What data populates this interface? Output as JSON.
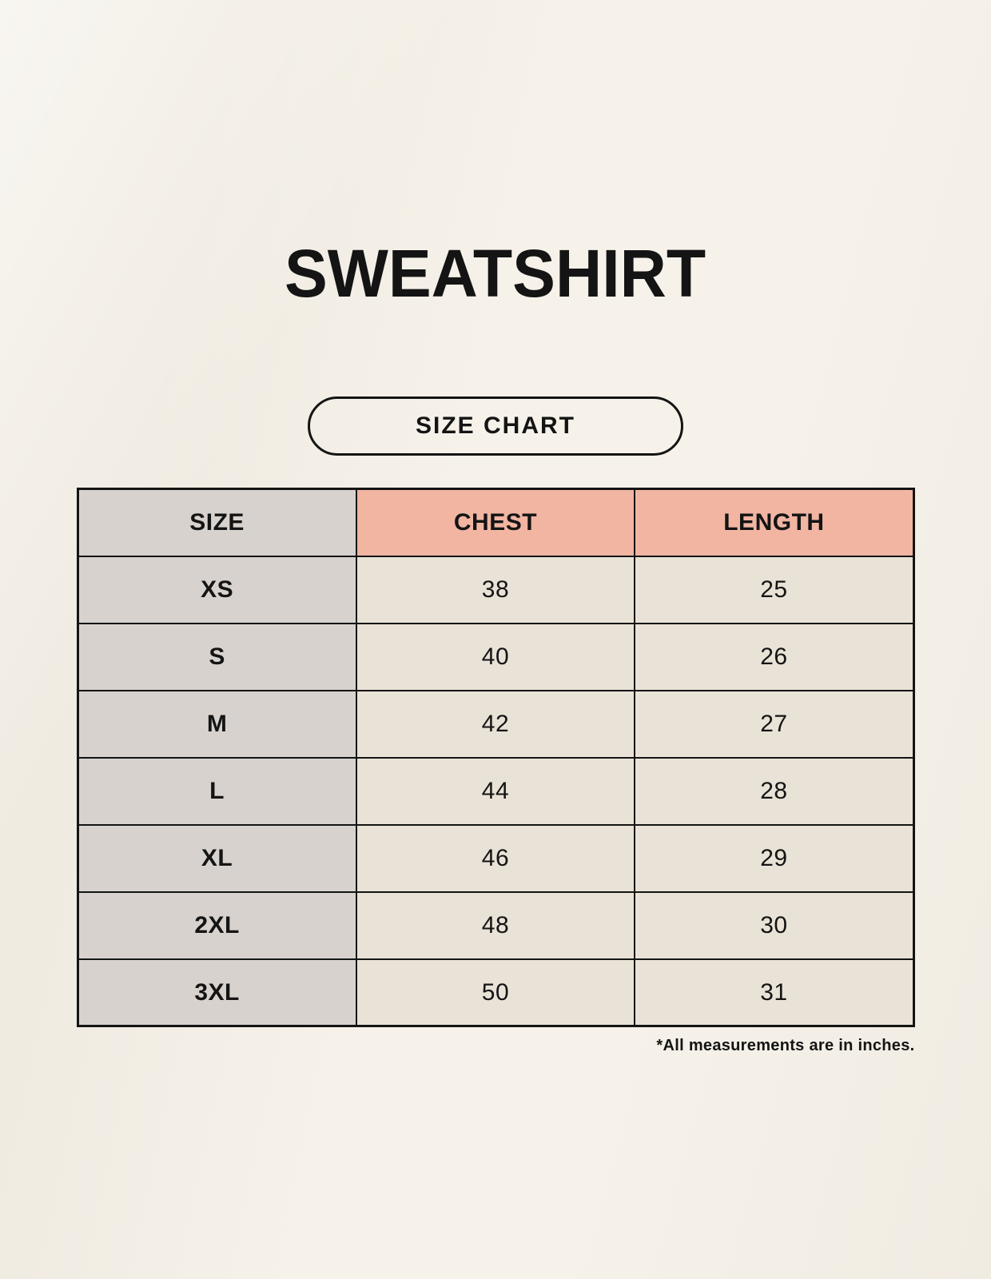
{
  "page": {
    "title": "SWEATSHIRT",
    "size_chart_button_label": "SIZE CHART",
    "footnote": "*All measurements are in inches."
  },
  "table": {
    "headers": {
      "size": "SIZE",
      "chest": "CHEST",
      "length": "LENGTH"
    },
    "rows": [
      {
        "size": "XS",
        "chest": "38",
        "length": "25"
      },
      {
        "size": "S",
        "chest": "40",
        "length": "26"
      },
      {
        "size": "M",
        "chest": "42",
        "length": "27"
      },
      {
        "size": "L",
        "chest": "44",
        "length": "28"
      },
      {
        "size": "XL",
        "chest": "46",
        "length": "29"
      },
      {
        "size": "2XL",
        "chest": "48",
        "length": "30"
      },
      {
        "size": "3XL",
        "chest": "50",
        "length": "31"
      }
    ]
  },
  "colors": {
    "page-bg": "#F6F2EA",
    "header-accent": "#F1B5A2",
    "size-col-bg": "#D8D2CE",
    "cell-bg": "#E9E2D6",
    "table-border": "#141414",
    "text": "#141414"
  },
  "chart_data": {
    "type": "table",
    "title": "SWEATSHIRT",
    "subtitle": "SIZE CHART",
    "columns": [
      "SIZE",
      "CHEST",
      "LENGTH"
    ],
    "rows": [
      [
        "XS",
        38,
        25
      ],
      [
        "S",
        40,
        26
      ],
      [
        "M",
        42,
        27
      ],
      [
        "L",
        44,
        28
      ],
      [
        "XL",
        46,
        29
      ],
      [
        "2XL",
        48,
        30
      ],
      [
        "3XL",
        50,
        31
      ]
    ],
    "units": "inches",
    "note": "*All measurements are in inches."
  }
}
